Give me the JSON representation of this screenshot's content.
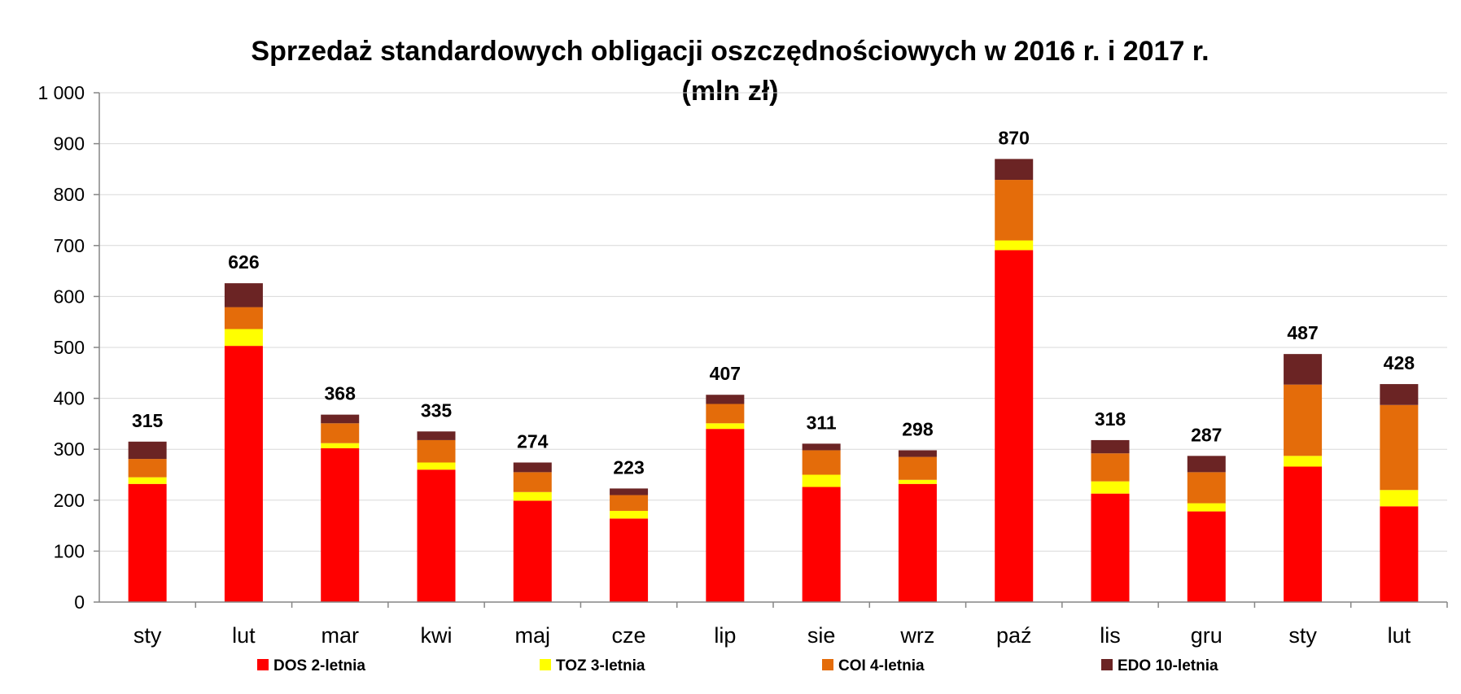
{
  "chart_data": {
    "type": "bar",
    "stacked": true,
    "title": "Sprzedaż standardowych obligacji oszczędnościowych w 2016 r. i 2017 r.",
    "subtitle": "(mln zł)",
    "xlabel": "",
    "ylabel": "",
    "ylim": [
      0,
      1000
    ],
    "yticks": [
      "0",
      "100",
      "200",
      "300",
      "400",
      "500",
      "600",
      "700",
      "800",
      "900",
      "1 000"
    ],
    "ytick_values": [
      0,
      100,
      200,
      300,
      400,
      500,
      600,
      700,
      800,
      900,
      1000
    ],
    "grid": true,
    "legend_position": "bottom",
    "categories": [
      "sty",
      "lut",
      "mar",
      "kwi",
      "maj",
      "cze",
      "lip",
      "sie",
      "wrz",
      "paź",
      "lis",
      "gru",
      "sty",
      "lut"
    ],
    "series": [
      {
        "name": "DOS 2-letnia",
        "color": "#ff0000",
        "values": [
          232,
          503,
          302,
          260,
          199,
          164,
          340,
          226,
          232,
          691,
          213,
          178,
          266,
          188
        ]
      },
      {
        "name": "TOZ 3-letnia",
        "color": "#ffff00",
        "values": [
          13,
          33,
          10,
          14,
          17,
          15,
          11,
          24,
          8,
          19,
          24,
          16,
          21,
          32
        ]
      },
      {
        "name": "COI 4-letnia",
        "color": "#e46c0a",
        "values": [
          36,
          43,
          39,
          44,
          39,
          31,
          38,
          48,
          45,
          119,
          55,
          61,
          140,
          167
        ]
      },
      {
        "name": "EDO 10-letnia",
        "color": "#6b2424",
        "values": [
          34,
          47,
          17,
          17,
          19,
          13,
          18,
          13,
          13,
          41,
          26,
          32,
          60,
          41
        ]
      }
    ],
    "totals": [
      "315",
      "626",
      "368",
      "335",
      "274",
      "223",
      "407",
      "311",
      "298",
      "870",
      "318",
      "287",
      "487",
      "428"
    ]
  }
}
